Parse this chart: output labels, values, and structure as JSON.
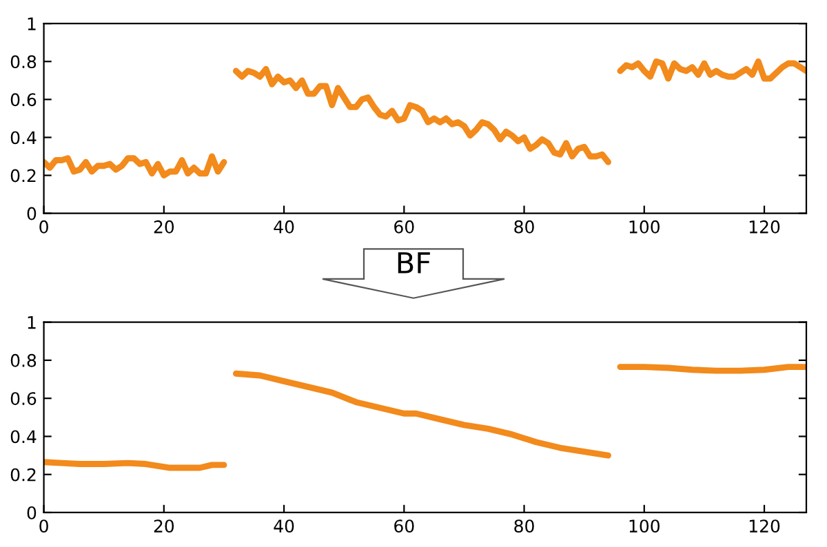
{
  "chart_data": [
    {
      "type": "line",
      "xlim": [
        0,
        127
      ],
      "ylim": [
        0,
        1
      ],
      "xticks": [
        0,
        20,
        40,
        60,
        80,
        100,
        120
      ],
      "yticks": [
        0,
        0.2,
        0.4,
        0.6,
        0.8,
        1
      ],
      "grid": false,
      "marker": "none",
      "line_style": "solid",
      "series": [
        {
          "color": "#f28a1c",
          "x": [
            0,
            1,
            2,
            3,
            4,
            5,
            6,
            7,
            8,
            9,
            10,
            11,
            12,
            13,
            14,
            15,
            16,
            17,
            18,
            19,
            20,
            21,
            22,
            23,
            24,
            25,
            26,
            27,
            28,
            29,
            30,
            31,
            32,
            33,
            34,
            35,
            36,
            37,
            38,
            39,
            40,
            41,
            42,
            43,
            44,
            45,
            46,
            47,
            48,
            49,
            50,
            51,
            52,
            53,
            54,
            55,
            56,
            57,
            58,
            59,
            60,
            61,
            62,
            63,
            64,
            65,
            66,
            67,
            68,
            69,
            70,
            71,
            72,
            73,
            74,
            75,
            76,
            77,
            78,
            79,
            80,
            81,
            82,
            83,
            84,
            85,
            86,
            87,
            88,
            89,
            90,
            91,
            92,
            93,
            94,
            95,
            96,
            97,
            98,
            99,
            100,
            101,
            102,
            103,
            104,
            105,
            106,
            107,
            108,
            109,
            110,
            111,
            112,
            113,
            114,
            115,
            116,
            117,
            118,
            119,
            120,
            121,
            122,
            123,
            124,
            125,
            126,
            127
          ],
          "values": [
            0.27,
            0.24,
            0.28,
            0.28,
            0.29,
            0.22,
            0.23,
            0.27,
            0.22,
            0.25,
            0.25,
            0.26,
            0.23,
            0.25,
            0.29,
            0.29,
            0.26,
            0.27,
            0.21,
            0.26,
            0.2,
            0.22,
            0.22,
            0.28,
            0.21,
            0.24,
            0.21,
            0.21,
            0.3,
            0.22,
            0.27,
            null,
            0.75,
            0.72,
            0.75,
            0.74,
            0.72,
            0.76,
            0.68,
            0.72,
            0.69,
            0.7,
            0.66,
            0.7,
            0.63,
            0.63,
            0.67,
            0.67,
            0.57,
            0.66,
            0.61,
            0.56,
            0.56,
            0.6,
            0.61,
            0.56,
            0.52,
            0.51,
            0.54,
            0.49,
            0.5,
            0.57,
            0.56,
            0.54,
            0.48,
            0.5,
            0.48,
            0.5,
            0.47,
            0.48,
            0.46,
            0.41,
            0.44,
            0.48,
            0.47,
            0.44,
            0.39,
            0.43,
            0.41,
            0.38,
            0.4,
            0.34,
            0.36,
            0.39,
            0.37,
            0.32,
            0.31,
            0.37,
            0.3,
            0.34,
            0.35,
            0.3,
            0.3,
            0.31,
            0.27,
            null,
            0.75,
            0.78,
            0.77,
            0.79,
            0.75,
            0.72,
            0.8,
            0.79,
            0.71,
            0.79,
            0.76,
            0.75,
            0.77,
            0.73,
            0.79,
            0.73,
            0.75,
            0.73,
            0.72,
            0.72,
            0.74,
            0.76,
            0.73,
            0.8,
            0.71,
            0.71,
            0.74,
            0.77,
            0.79,
            0.79,
            0.77,
            0.75
          ]
        }
      ]
    },
    {
      "type": "line",
      "xlim": [
        0,
        127
      ],
      "ylim": [
        0,
        1
      ],
      "xticks": [
        0,
        20,
        40,
        60,
        80,
        100,
        120
      ],
      "yticks": [
        0,
        0.2,
        0.4,
        0.6,
        0.8,
        1
      ],
      "grid": false,
      "marker": "none",
      "line_style": "solid",
      "annotations": [
        "BF"
      ],
      "series": [
        {
          "color": "#f28a1c",
          "x": [
            0,
            3,
            6,
            10,
            14,
            17,
            21,
            24,
            26,
            28,
            30,
            31,
            32,
            36,
            40,
            44,
            48,
            52,
            56,
            60,
            62,
            66,
            70,
            74,
            78,
            82,
            86,
            90,
            94,
            95,
            96,
            100,
            104,
            108,
            112,
            116,
            120,
            124,
            127
          ],
          "values": [
            0.265,
            0.26,
            0.255,
            0.255,
            0.26,
            0.255,
            0.235,
            0.235,
            0.235,
            0.25,
            0.25,
            null,
            0.73,
            0.72,
            0.69,
            0.66,
            0.63,
            0.58,
            0.55,
            0.52,
            0.52,
            0.49,
            0.46,
            0.44,
            0.41,
            0.37,
            0.34,
            0.32,
            0.3,
            null,
            0.765,
            0.765,
            0.76,
            0.75,
            0.745,
            0.745,
            0.75,
            0.765,
            0.765
          ]
        }
      ]
    }
  ]
}
